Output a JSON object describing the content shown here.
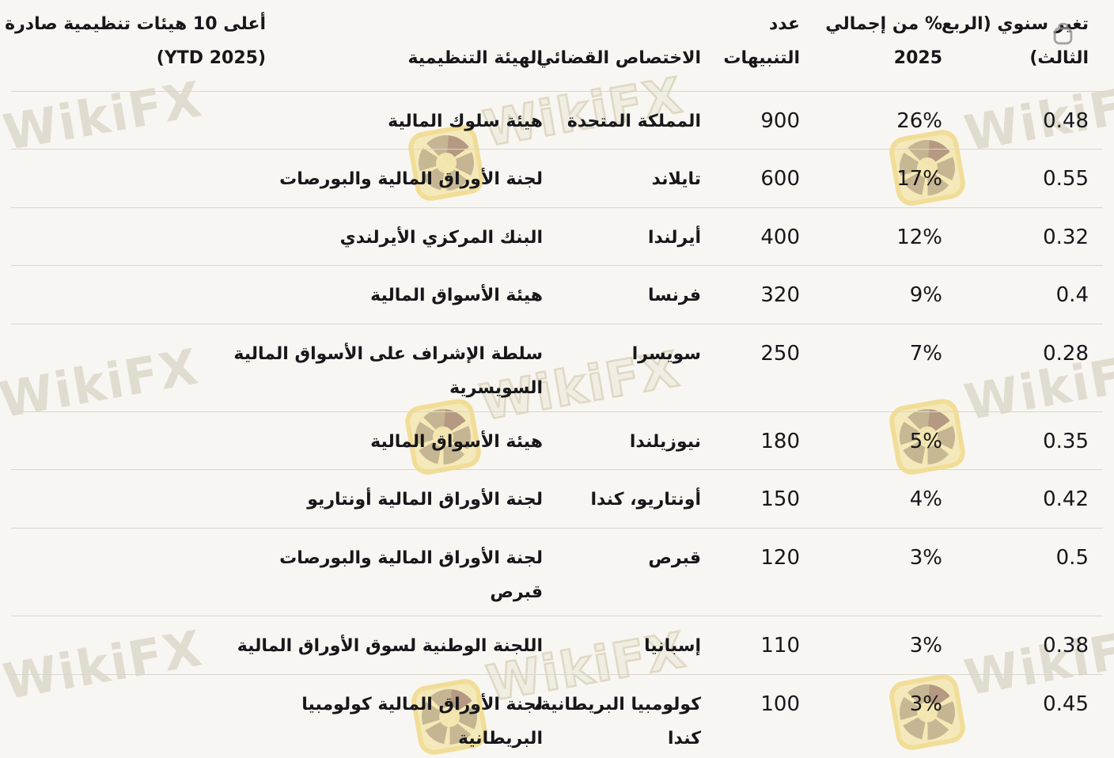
{
  "colors": {
    "background": "#f7f6f2",
    "text": "#17171a",
    "divider": "#d9d6cf",
    "watermark_tan": "#b0a082",
    "logo_yellow": "#f3de8c"
  },
  "watermark": {
    "text": "WikiFX"
  },
  "table": {
    "columns": [
      {
        "key": "yoy",
        "label": "تغير سنوي (الربع\nالثالث)"
      },
      {
        "key": "pct",
        "label": "% من إجمالي\n2025"
      },
      {
        "key": "alerts",
        "label": "عدد\nالتنبيهات"
      },
      {
        "key": "jurisdiction",
        "label": "الاختصاص القضائي"
      },
      {
        "key": "regulator",
        "label": "الهيئة التنظيمية"
      },
      {
        "key": "title",
        "label": "أعلى 10 هيئات تنظيمية صادرة\n(YTD 2025)"
      }
    ],
    "rows": [
      {
        "regulator": "هيئة سلوك المالية",
        "jurisdiction": "المملكة المتحدة",
        "alerts": "900",
        "pct": "26%",
        "yoy": "0.48"
      },
      {
        "regulator": "لجنة الأوراق المالية والبورصات",
        "jurisdiction": "تايلاند",
        "alerts": "600",
        "pct": "17%",
        "yoy": "0.55"
      },
      {
        "regulator": "البنك المركزي الأيرلندي",
        "jurisdiction": "أيرلندا",
        "alerts": "400",
        "pct": "12%",
        "yoy": "0.32"
      },
      {
        "regulator": "هيئة الأسواق المالية",
        "jurisdiction": "فرنسا",
        "alerts": "320",
        "pct": "9%",
        "yoy": "0.4"
      },
      {
        "regulator": "سلطة الإشراف على الأسواق المالية\nالسويسرية",
        "jurisdiction": "سويسرا",
        "alerts": "250",
        "pct": "7%",
        "yoy": "0.28"
      },
      {
        "regulator": "هيئة الأسواق المالية",
        "jurisdiction": "نيوزيلندا",
        "alerts": "180",
        "pct": "5%",
        "yoy": "0.35"
      },
      {
        "regulator": "لجنة الأوراق المالية أونتاريو",
        "jurisdiction": "أونتاريو، كندا",
        "alerts": "150",
        "pct": "4%",
        "yoy": "0.42"
      },
      {
        "regulator": "لجنة الأوراق المالية والبورصات\nقبرص",
        "jurisdiction": "قبرص",
        "alerts": "120",
        "pct": "3%",
        "yoy": "0.5"
      },
      {
        "regulator": "اللجنة الوطنية لسوق الأوراق المالية",
        "jurisdiction": "إسبانيا",
        "alerts": "110",
        "pct": "3%",
        "yoy": "0.38"
      },
      {
        "regulator": "لجنة الأوراق المالية كولومبيا\nالبريطانية",
        "jurisdiction": "كولومبيا البريطانية،\nكندا",
        "alerts": "100",
        "pct": "3%",
        "yoy": "0.45"
      }
    ]
  }
}
